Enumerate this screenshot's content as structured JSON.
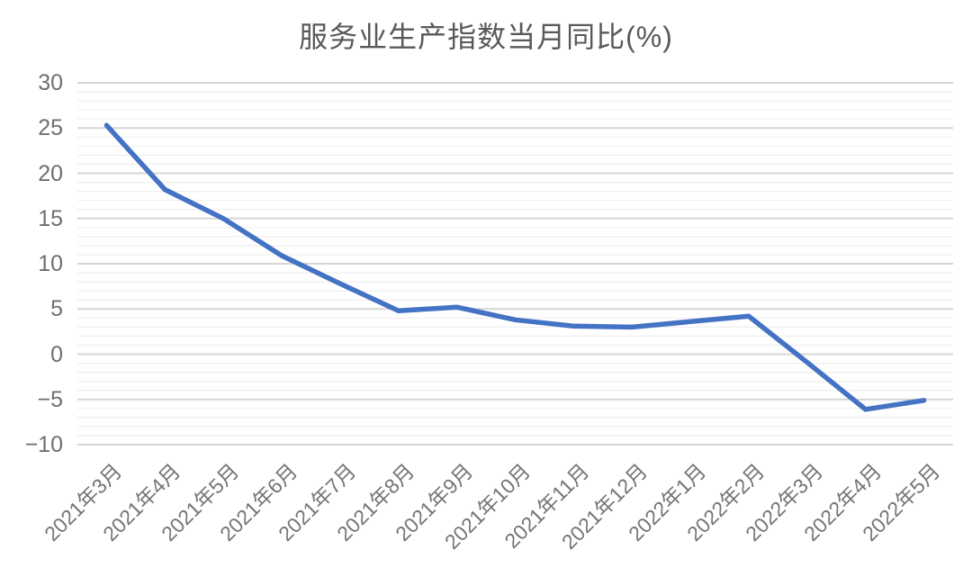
{
  "chart_data": {
    "type": "line",
    "title": "服务业生产指数当月同比(%)",
    "categories": [
      "2021年3月",
      "2021年4月",
      "2021年5月",
      "2021年6月",
      "2021年7月",
      "2021年8月",
      "2021年9月",
      "2021年10月",
      "2021年11月",
      "2021年12月",
      "2022年1月",
      "2022年2月",
      "2022年3月",
      "2022年4月",
      "2022年5月"
    ],
    "values": [
      25.3,
      18.2,
      15.0,
      10.9,
      7.8,
      4.8,
      5.2,
      3.8,
      3.1,
      3.0,
      3.6,
      4.2,
      -0.9,
      -6.1,
      -5.1
    ],
    "xlabel": "",
    "ylabel": "",
    "ylim": [
      -10,
      30
    ],
    "y_major_step": 5,
    "y_minor_step": 1,
    "y_tick_labels": [
      "30",
      "25",
      "20",
      "15",
      "10",
      "5",
      "0",
      "−5",
      "−10"
    ],
    "x_tick_rotation_deg": 45,
    "grid": "on",
    "legend": "none",
    "line_color": "#4472C4",
    "major_grid_color": "#d6d6d6",
    "minor_grid_color": "#efefef",
    "title_color": "#595959",
    "axis_label_color": "#757575",
    "background_color": "#ffffff"
  }
}
